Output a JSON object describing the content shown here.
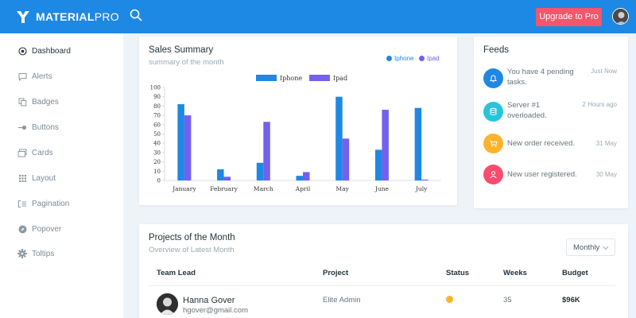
{
  "brand": {
    "name_bold": "MATERIAL",
    "name_light": "PRO"
  },
  "topbar": {
    "upgrade_label": "Upgrade to Pro"
  },
  "colors": {
    "primary": "#1e88e5",
    "iphone": "#1e88e5",
    "ipad": "#7460ee",
    "upgrade": "#f4566b"
  },
  "sidebar": {
    "items": [
      {
        "label": "Dashboard",
        "icon": "target-icon"
      },
      {
        "label": "Alerts",
        "icon": "message-icon"
      },
      {
        "label": "Badges",
        "icon": "copy-icon"
      },
      {
        "label": "Buttons",
        "icon": "toggle-icon"
      },
      {
        "label": "Cards",
        "icon": "cards-icon"
      },
      {
        "label": "Layout",
        "icon": "grid-icon"
      },
      {
        "label": "Pagination",
        "icon": "list-icon"
      },
      {
        "label": "Popover",
        "icon": "compass-icon"
      },
      {
        "label": "Toltips",
        "icon": "gear-icon"
      }
    ]
  },
  "sales": {
    "title": "Sales Summary",
    "subtitle": "summary of the month",
    "legend": [
      "Iphone",
      "Ipad"
    ]
  },
  "chart_data": {
    "type": "bar",
    "categories": [
      "January",
      "February",
      "March",
      "April",
      "May",
      "June",
      "July"
    ],
    "series": [
      {
        "name": "Iphone",
        "values": [
          82,
          12,
          19,
          5,
          90,
          33,
          78
        ]
      },
      {
        "name": "Ipad",
        "values": [
          70,
          4,
          63,
          9,
          45,
          76,
          1
        ]
      }
    ],
    "yticks": [
      0,
      10,
      20,
      30,
      40,
      50,
      60,
      70,
      80,
      90,
      100
    ],
    "ylim": [
      0,
      100
    ],
    "legend_position": "top"
  },
  "feeds": {
    "title": "Feeds",
    "items": [
      {
        "text": "You have 4 pending tasks.",
        "time": "Just Now",
        "color": "#1e88e5",
        "icon": "bell-icon"
      },
      {
        "text": "Server #1 overloaded.",
        "time": "2 Hours ago",
        "color": "#26c6da",
        "icon": "server-icon"
      },
      {
        "text": "New order received.",
        "time": "31 May",
        "color": "#ffb22b",
        "icon": "cart-icon"
      },
      {
        "text": "New user registered.",
        "time": "30 May",
        "color": "#fc4b6c",
        "icon": "user-icon"
      }
    ]
  },
  "projects": {
    "title": "Projects of the Month",
    "subtitle": "Overview of Latest Month",
    "filter": "Monthly",
    "headers": [
      "Team Lead",
      "Project",
      "Status",
      "Weeks",
      "Budget"
    ],
    "rows": [
      {
        "name": "Hanna Gover",
        "email": "hgover@gmail.com",
        "project": "Elite Admin",
        "status_color": "#ffb22b",
        "weeks": "35",
        "budget": "$96K"
      }
    ]
  }
}
